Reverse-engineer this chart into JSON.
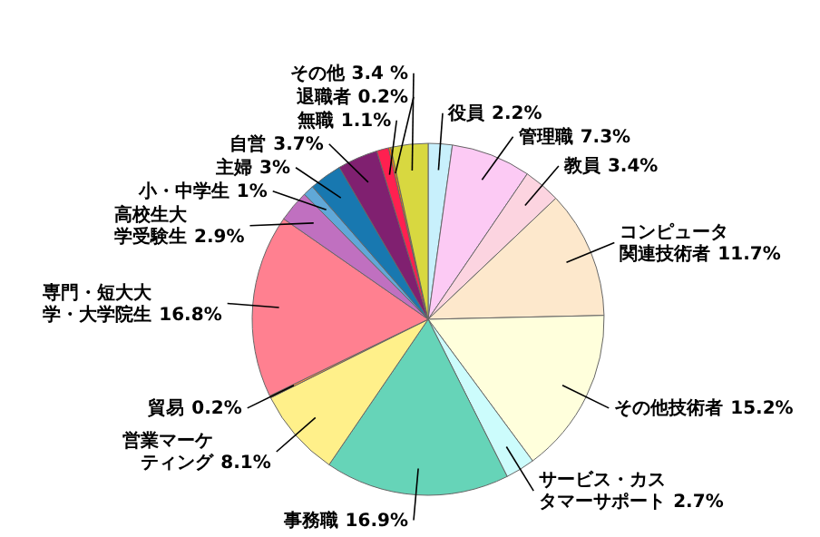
{
  "chart_data": {
    "type": "pie",
    "categories": [
      "役員",
      "管理職",
      "教員",
      "コンピュータ関連技術者",
      "その他技術者",
      "サービス・カスタマーサポート",
      "事務職",
      "営業マーケティング",
      "貿易",
      "専門・短大大学・大学院生",
      "高校生大学受験生",
      "小・中学生",
      "主婦",
      "自営",
      "無職",
      "退職者",
      "その他"
    ],
    "values": [
      2.2,
      7.3,
      3.4,
      11.7,
      15.2,
      2.7,
      16.9,
      8.1,
      0.2,
      16.8,
      2.9,
      1,
      3,
      3.7,
      1.1,
      0.2,
      3.4
    ],
    "colors": [
      "#c8f0fc",
      "#fccaf4",
      "#fcd4e0",
      "#fde8cc",
      "#ffffdc",
      "#ccfcfc",
      "#66d4b8",
      "#fff08a",
      "#ff9040",
      "#ff8090",
      "#c070c0",
      "#60a8d8",
      "#1878b0",
      "#802070",
      "#ff2050",
      "#ff8000",
      "#d8d840"
    ],
    "value_labels": [
      "2.2%",
      "7.3%",
      "3.4%",
      "11.7%",
      "15.2%",
      "2.7%",
      "16.9%",
      "8.1%",
      "0.2%",
      "16.8%",
      "2.9%",
      "1%",
      "3%",
      "3.7%",
      "1.1%",
      "0.2%",
      "3.4 %"
    ]
  }
}
